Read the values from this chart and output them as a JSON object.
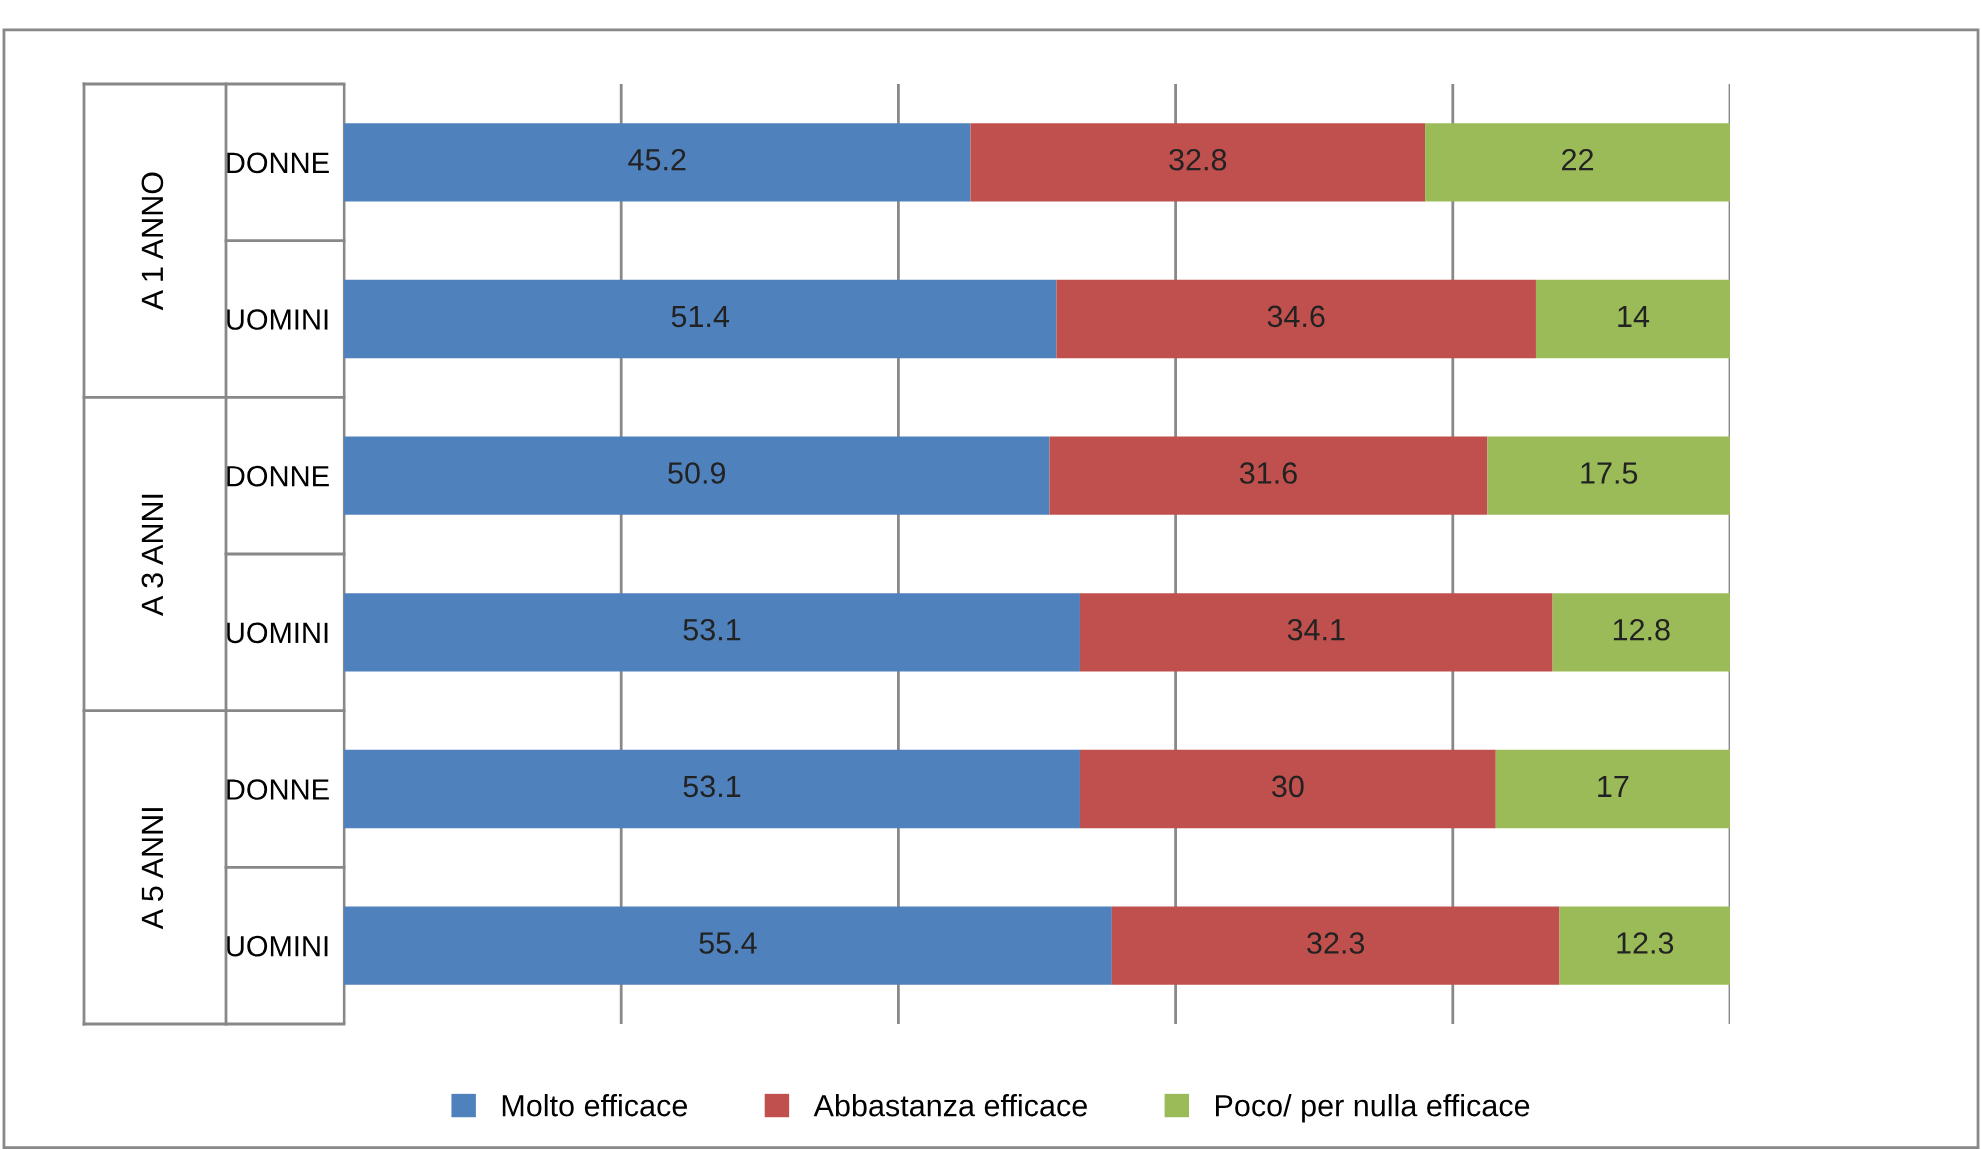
{
  "chart_data": {
    "type": "bar",
    "orientation": "horizontal",
    "stacked": true,
    "categories": [
      "DONNE",
      "UOMINI",
      "DONNE",
      "UOMINI",
      "DONNE",
      "UOMINI"
    ],
    "annotations": [
      "A 1 ANNO",
      "A 3 ANNI",
      "A 5 ANNI"
    ],
    "series": [
      {
        "name": "Molto efficace",
        "color": "#4f81bd",
        "values": [
          45.2,
          51.4,
          50.9,
          53.1,
          53.1,
          55.4
        ]
      },
      {
        "name": "Abbastanza efficace",
        "color": "#c0504d",
        "values": [
          32.8,
          34.6,
          31.6,
          34.1,
          30,
          32.3
        ]
      },
      {
        "name": "Poco/ per nulla efficace",
        "color": "#9bbb59",
        "values": [
          22,
          14,
          17.5,
          12.8,
          17,
          12.3
        ]
      }
    ],
    "xlim": [
      0,
      100
    ],
    "xticks": [
      {
        "value": 0,
        "label": null
      },
      {
        "value": 20,
        "label": null
      },
      {
        "value": 40,
        "label": null
      },
      {
        "value": 60,
        "label": null
      },
      {
        "value": 80,
        "label": null
      },
      {
        "value": 100,
        "label": null
      }
    ],
    "tick_labels": "y",
    "grid": "x",
    "data_labels": true,
    "legend": "bottom"
  }
}
